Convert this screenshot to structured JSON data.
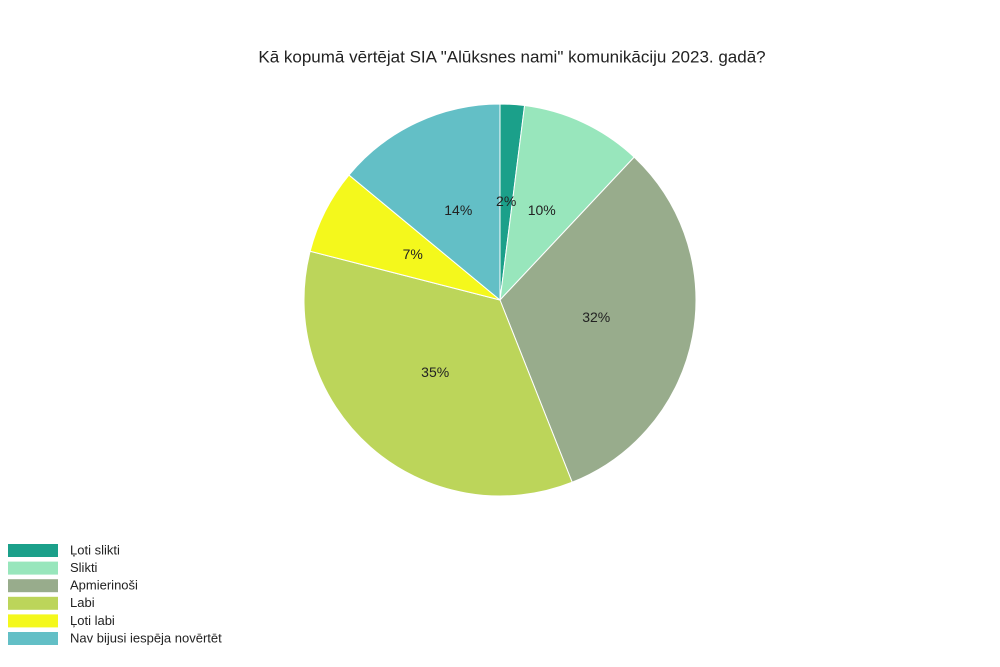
{
  "chart_data": {
    "type": "pie",
    "title": "Kā kopumā vērtējat SIA \"Alūksnes nami\" komunikāciju 2023. gadā?",
    "categories": [
      "Ļoti slikti",
      "Slikti",
      "Apmierinoši",
      "Labi",
      "Ļoti labi",
      "Nav bijusi iespēja novērtēt"
    ],
    "values": [
      2,
      10,
      32,
      35,
      7,
      14
    ],
    "value_labels": [
      "2%",
      "10%",
      "32%",
      "35%",
      "7%",
      "14%"
    ],
    "colors": [
      "#1ba08a",
      "#98e6bc",
      "#98ac8c",
      "#bcd55a",
      "#f4f81c",
      "#63bfc6"
    ],
    "legend": "bottom-left"
  }
}
